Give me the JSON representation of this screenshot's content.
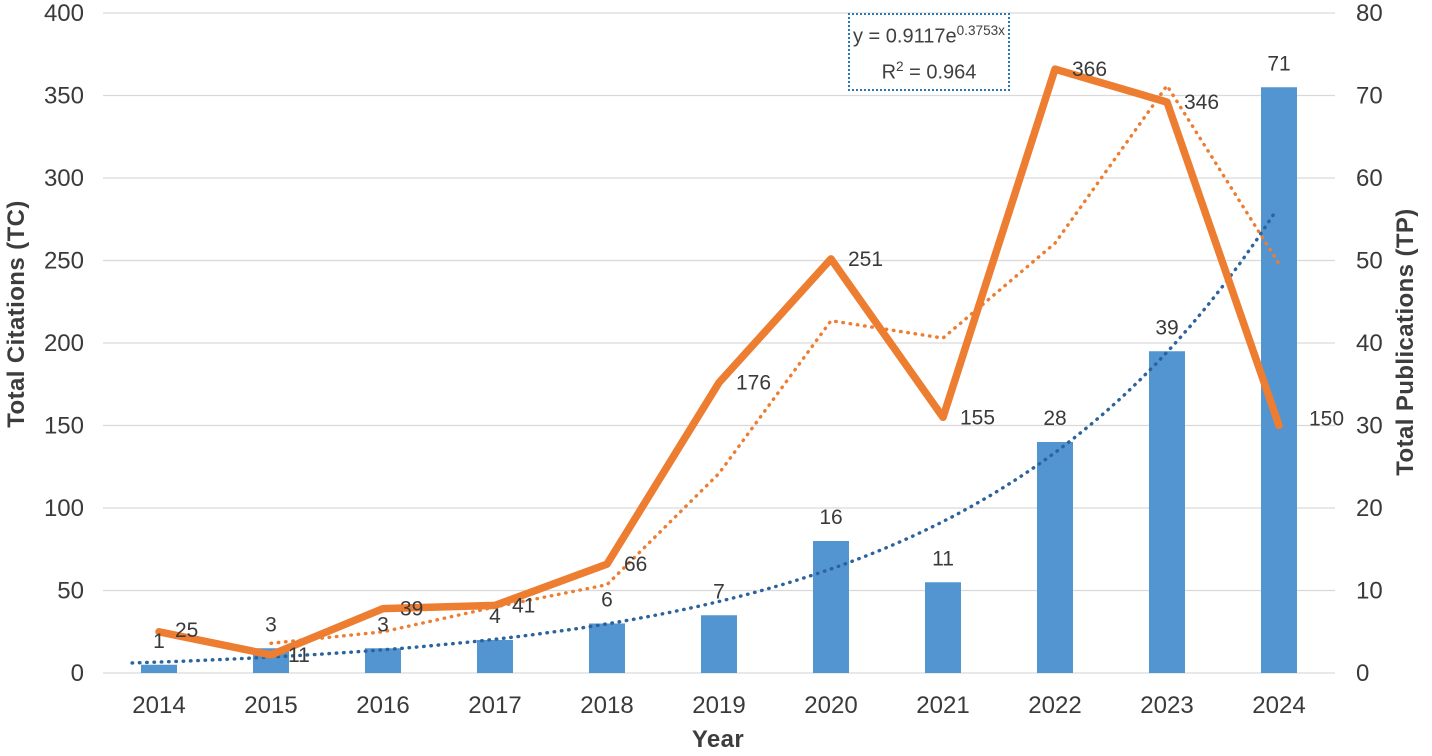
{
  "chart_data": {
    "type": "combo-bar-line",
    "x": {
      "title": "Year",
      "categories": [
        "2014",
        "2015",
        "2016",
        "2017",
        "2018",
        "2019",
        "2020",
        "2021",
        "2022",
        "2023",
        "2024"
      ]
    },
    "left_axis": {
      "title": "Total Citations (TC)",
      "min": 0,
      "max": 400,
      "step": 50
    },
    "right_axis": {
      "title": "Total Publications (TP)",
      "min": 0,
      "max": 80,
      "step": 10
    },
    "grid": true,
    "legend": "none",
    "series": [
      {
        "id": "tp_bars",
        "name": "Total Publications (TP)",
        "type": "bar",
        "axis": "right",
        "color": "#5295D0",
        "values": [
          1,
          3,
          3,
          4,
          6,
          7,
          16,
          11,
          28,
          39,
          71
        ]
      },
      {
        "id": "tc_line",
        "name": "Total Citations (TC)",
        "type": "line",
        "axis": "left",
        "color": "#ED7D31",
        "values": [
          25,
          11,
          39,
          41,
          66,
          176,
          251,
          155,
          366,
          346,
          150
        ]
      },
      {
        "id": "tc_moving_avg",
        "name": "2-period moving average of TC (dotted)",
        "type": "dotted-line",
        "axis": "left",
        "color": "#ED7D31",
        "values": [
          null,
          18,
          25,
          40,
          53.5,
          121,
          213.5,
          203,
          260.5,
          356,
          248
        ]
      },
      {
        "id": "tp_exp_trendline",
        "name": "Exponential trendline of TP (dotted)",
        "type": "dotted-trendline",
        "axis": "right",
        "color": "#2B639B",
        "formula": {
          "a": 0.9117,
          "b": 0.3753
        }
      }
    ],
    "trendline_label": {
      "equation_prefix": "y = 0.9117e",
      "equation_exponent": "0.3753x",
      "r2_base": "R",
      "r2_sup": "2",
      "r2_rest": " = 0.964"
    },
    "colors": {
      "grid": "#D9D9D9",
      "text": "#3a3a3a",
      "box_border": "#2E75B6"
    }
  }
}
